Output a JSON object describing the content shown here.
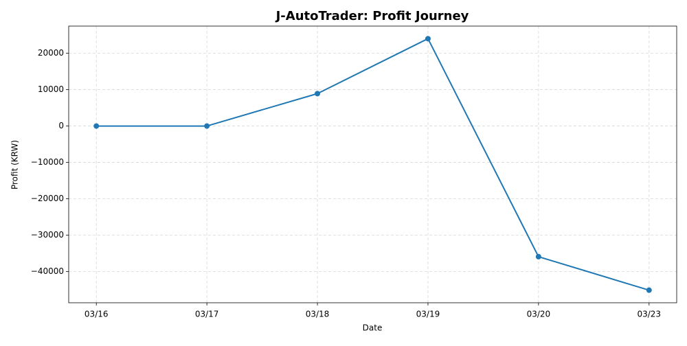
{
  "chart_data": {
    "type": "line",
    "title": "J-AutoTrader: Profit Journey",
    "x_label": "Date",
    "y_label": "Profit (KRW)",
    "categories": [
      "03/16",
      "03/17",
      "03/18",
      "03/19",
      "03/20",
      "03/23"
    ],
    "series": [
      {
        "name": "Profit",
        "color": "#1f77b4",
        "values": [
          0,
          0,
          8900,
          24000,
          -35900,
          -45100
        ]
      }
    ],
    "ylim": [
      -48555,
      27455
    ],
    "yticks": [
      {
        "value": -40000,
        "label": "−40000"
      },
      {
        "value": -30000,
        "label": "−30000"
      },
      {
        "value": -20000,
        "label": "−20000"
      },
      {
        "value": -10000,
        "label": "−10000"
      },
      0,
      10000,
      20000
    ],
    "grid": true
  }
}
